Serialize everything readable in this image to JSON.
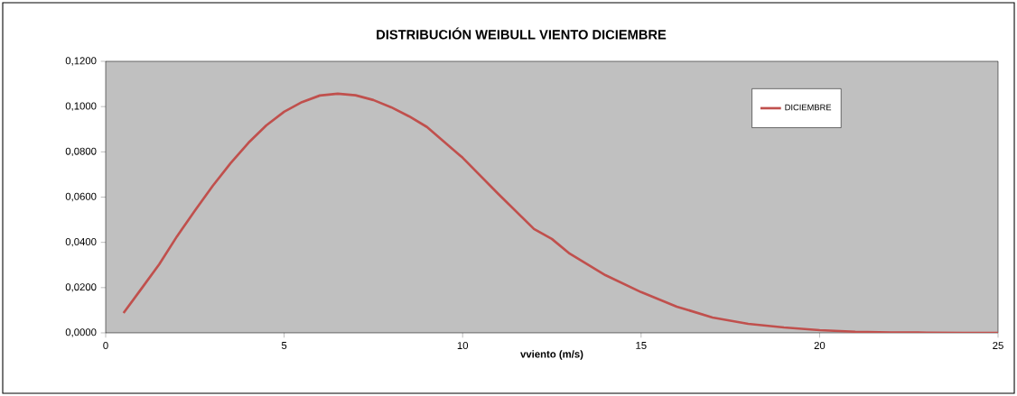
{
  "chart_data": {
    "type": "line",
    "title": "DISTRIBUCIÓN WEIBULL VIENTO DICIEMBRE",
    "xlabel": "vviento (m/s)",
    "x": [
      0.5,
      1,
      1.5,
      2,
      2.5,
      3,
      3.5,
      4,
      4.5,
      5,
      5.5,
      6,
      6.5,
      7,
      7.5,
      8,
      8.5,
      9,
      10,
      11,
      12,
      12.5,
      13,
      14,
      15,
      16,
      17,
      18,
      19,
      20,
      21,
      22,
      23,
      24,
      25
    ],
    "series": [
      {
        "name": "DICIEMBRE",
        "color": "#c0504d",
        "values": [
          0.0088,
          0.0195,
          0.0303,
          0.0427,
          0.054,
          0.065,
          0.075,
          0.084,
          0.0917,
          0.0977,
          0.102,
          0.1049,
          0.1057,
          0.105,
          0.1029,
          0.0997,
          0.0957,
          0.091,
          0.0774,
          0.0614,
          0.0459,
          0.0415,
          0.035,
          0.0255,
          0.018,
          0.0116,
          0.0068,
          0.004,
          0.0024,
          0.0012,
          0.0005,
          0.0002,
          0.0001,
          0.0,
          0.0
        ]
      }
    ],
    "xlim": [
      0,
      25
    ],
    "xticks": [
      0,
      5,
      10,
      15,
      20,
      25
    ],
    "ylim": [
      0,
      0.12
    ],
    "yticks": [
      {
        "value": 0,
        "label": "0,0000"
      },
      {
        "value": 0.02,
        "label": "0,0200"
      },
      {
        "value": 0.04,
        "label": "0,0400"
      },
      {
        "value": 0.06,
        "label": "0,0600"
      },
      {
        "value": 0.08,
        "label": "0,0800"
      },
      {
        "value": 0.1,
        "label": "0,1000"
      },
      {
        "value": 0.12,
        "label": "0,1200"
      }
    ],
    "grid": false,
    "legend": "top right",
    "marker": "none",
    "line_style": "solid"
  }
}
